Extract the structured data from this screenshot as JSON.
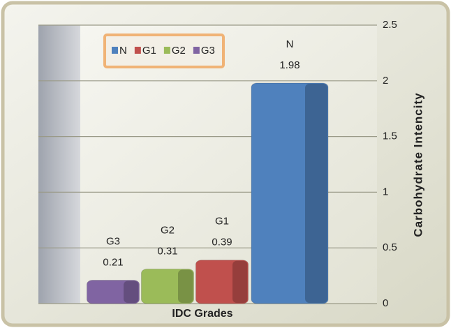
{
  "chart_data": {
    "type": "bar",
    "x_label": "IDC Grades",
    "y_label": "Carbohydrate  Intencity",
    "categories": [
      "G3",
      "G2",
      "G1",
      "N"
    ],
    "series": [
      {
        "name": "N",
        "color": "#4f81bd",
        "values": [
          null,
          null,
          null,
          1.98
        ]
      },
      {
        "name": "G1",
        "color": "#c0504d",
        "values": [
          null,
          null,
          0.39,
          null
        ]
      },
      {
        "name": "G2",
        "color": "#9bbb59",
        "values": [
          null,
          0.31,
          null,
          null
        ]
      },
      {
        "name": "G3",
        "color": "#8064a2",
        "values": [
          0.21,
          null,
          null,
          null
        ]
      }
    ],
    "ylim": [
      0,
      2.5
    ],
    "yticks": [
      0,
      0.5,
      1,
      1.5,
      2,
      2.5
    ],
    "grid": true,
    "legend": "top-left"
  }
}
